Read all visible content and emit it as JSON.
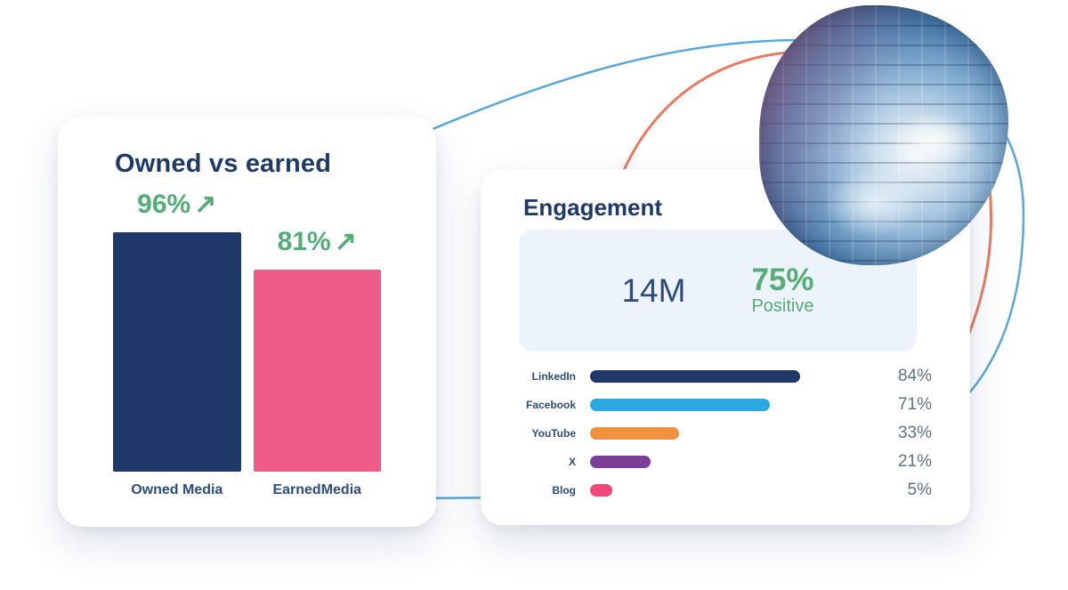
{
  "colors": {
    "navy": "#21386b",
    "green": "#53ad74",
    "pink": "#f05c88",
    "panel_bg": "#edf3fa",
    "curve_blue": "#58a8dc",
    "curve_salmon": "#e97a62",
    "pct_text": "#5a7386"
  },
  "owned_vs_earned": {
    "title": "Owned vs earned",
    "trend_arrow": "↗",
    "bars": [
      {
        "label": "Owned Media",
        "pct": "96%",
        "value": 96,
        "color": "#21386b"
      },
      {
        "label": "EarnedMedia",
        "pct": "81%",
        "value": 81,
        "color": "#f05c88"
      }
    ]
  },
  "engagement": {
    "title": "Engagement",
    "total_mentions": "14M",
    "positive_pct": "75%",
    "positive_label": "Positive",
    "rows": [
      {
        "label": "LinkedIn",
        "pct": "84%",
        "value": 84,
        "color": "#21386b"
      },
      {
        "label": "Facebook",
        "pct": "71%",
        "value": 71,
        "color": "#2aa9e0"
      },
      {
        "label": "YouTube",
        "pct": "33%",
        "value": 33,
        "color": "#f0923f"
      },
      {
        "label": "X",
        "pct": "21%",
        "value": 21,
        "color": "#7b3f98"
      },
      {
        "label": "Blog",
        "pct": "5%",
        "value": 5,
        "color": "#f0487a"
      }
    ]
  },
  "chart_data": [
    {
      "type": "bar",
      "title": "Owned vs earned",
      "categories": [
        "Owned Media",
        "EarnedMedia"
      ],
      "values": [
        96,
        81
      ],
      "value_labels": [
        "96% ↗",
        "81% ↗"
      ],
      "ylim": [
        0,
        100
      ],
      "grid": false,
      "legend_position": "none",
      "colors": [
        "#21386b",
        "#f05c88"
      ],
      "xlabel": "",
      "ylabel": ""
    },
    {
      "type": "bar",
      "orientation": "horizontal",
      "title": "Engagement",
      "categories": [
        "LinkedIn",
        "Facebook",
        "YouTube",
        "X",
        "Blog"
      ],
      "values": [
        84,
        71,
        33,
        21,
        5
      ],
      "value_labels": [
        "84%",
        "71%",
        "33%",
        "21%",
        "5%"
      ],
      "annotations": [
        "14M",
        "75% Positive"
      ],
      "xlim": [
        0,
        100
      ],
      "grid": false,
      "legend_position": "none",
      "colors": [
        "#21386b",
        "#2aa9e0",
        "#f0923f",
        "#7b3f98",
        "#f0487a"
      ],
      "xlabel": "",
      "ylabel": ""
    }
  ]
}
